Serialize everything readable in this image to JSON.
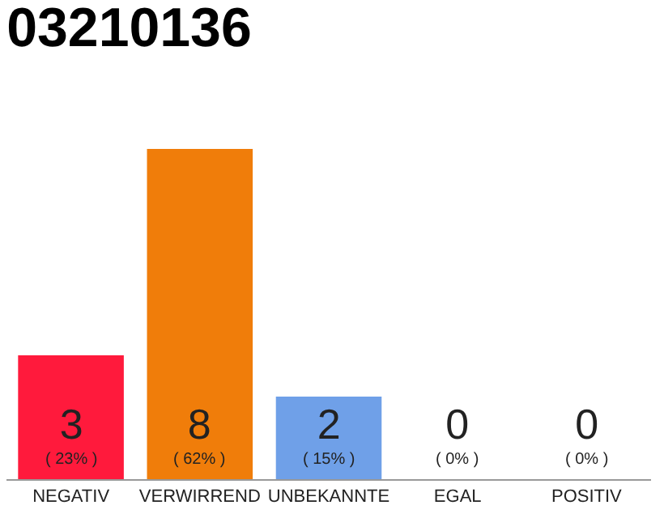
{
  "chart_data": {
    "type": "bar",
    "title": "03210136",
    "categories": [
      "NEGATIV",
      "VERWIRREND",
      "UNBEKANNTE",
      "EGAL",
      "POSITIV"
    ],
    "values": [
      3,
      8,
      2,
      0,
      0
    ],
    "colors": [
      "#ff1a3c",
      "#f07d0a",
      "#6fa0e8",
      "#bbbbbb",
      "#bbbbbb"
    ],
    "value_labels": [
      "3\n( 23% )",
      "8\n( 62% )",
      "2\n( 15% )",
      "0\n( 0% )",
      "0\n( 0% )"
    ],
    "grid": false
  }
}
